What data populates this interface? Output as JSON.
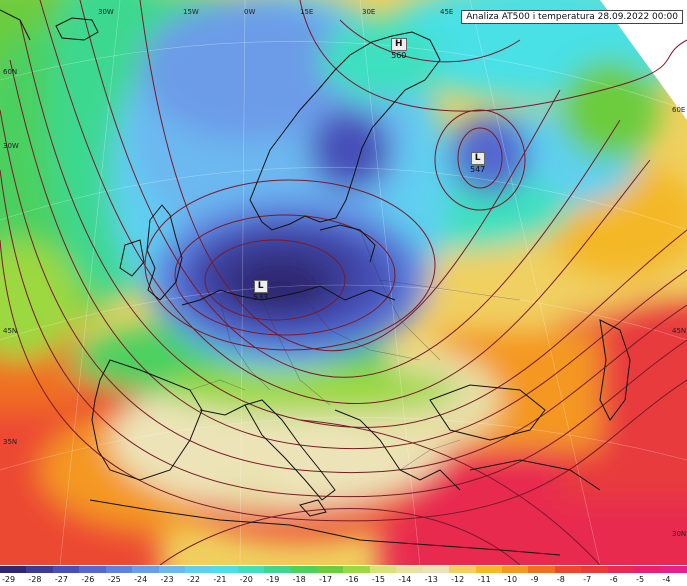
{
  "title": "Analiza AT500 i temperatura 28.09.2022 00:00",
  "longitude_labels": [
    {
      "text": "30W",
      "lon": -30
    },
    {
      "text": "15W",
      "lon": -15
    },
    {
      "text": "0W",
      "lon": 0
    },
    {
      "text": "15E",
      "lon": 15
    },
    {
      "text": "30E",
      "lon": 30
    },
    {
      "text": "45E",
      "lon": 45
    }
  ],
  "latitude_labels": [
    {
      "text": "60N",
      "lat": 60
    },
    {
      "text": "30W",
      "lat": 55
    },
    {
      "text": "60E",
      "lat": 62
    },
    {
      "text": "45N",
      "lat": 45
    },
    {
      "text": "45N",
      "lat": 45
    },
    {
      "text": "35N",
      "lat": 35
    },
    {
      "text": "30N",
      "lat": 30
    }
  ],
  "pressure_centers": [
    {
      "type": "H",
      "value": "560"
    },
    {
      "type": "L",
      "value": "547"
    },
    {
      "type": "L",
      "value": "533"
    }
  ],
  "legend": {
    "values": [
      "-29",
      "-28",
      "-27",
      "-26",
      "-25",
      "-24",
      "-23",
      "-22",
      "-21",
      "-20",
      "-19",
      "-18",
      "-17",
      "-16",
      "-15",
      "-14",
      "-13",
      "-12",
      "-11",
      "-10",
      "-9",
      "-8",
      "-7",
      "-6",
      "-5",
      "-4"
    ],
    "colors": [
      "#2e2870",
      "#3a3c98",
      "#4650b8",
      "#5468d0",
      "#5e82e0",
      "#6c9ce8",
      "#6cb8f0",
      "#5ed0f0",
      "#4ae0e6",
      "#3ee0c0",
      "#3cd890",
      "#4cd060",
      "#6ccc3c",
      "#9cd840",
      "#d4e478",
      "#e8e0a8",
      "#ece4b8",
      "#f0d060",
      "#f4b828",
      "#f49820",
      "#f07020",
      "#ec4830",
      "#e83a3c",
      "#e82a50",
      "#e82070",
      "#e4208c"
    ]
  },
  "colors": {
    "contour": "#7a1a2a",
    "coast": "#111111",
    "background": "#ffffff"
  }
}
